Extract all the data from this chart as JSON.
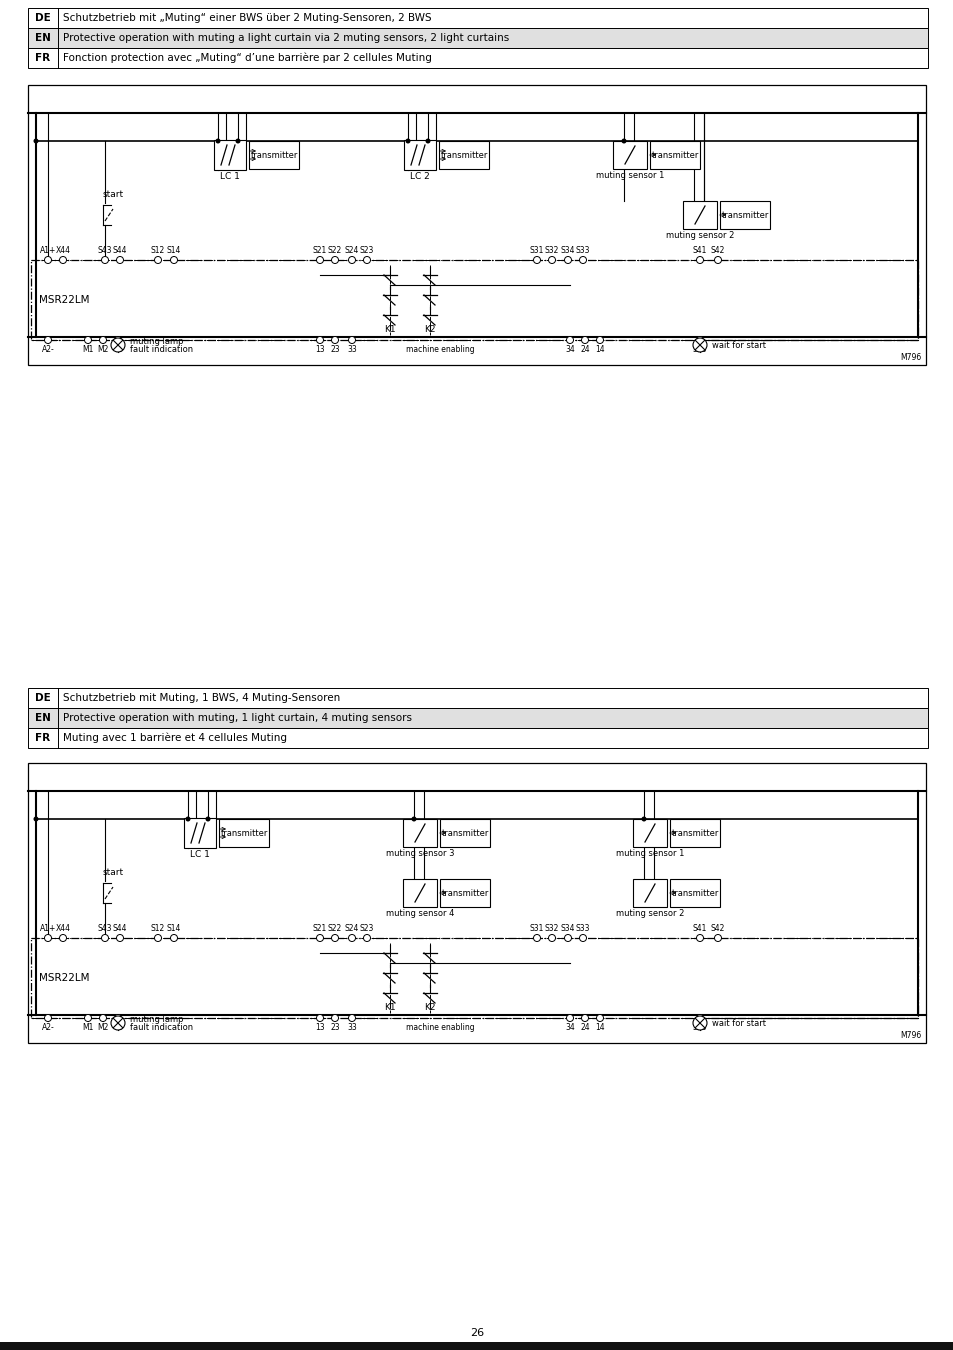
{
  "page_num": "26",
  "bg_color": "#ffffff",
  "table1": {
    "rows": [
      {
        "lang": "DE",
        "text": "Schutzbetrieb mit „Muting“ einer BWS über 2 Muting-Sensoren, 2 BWS",
        "bg": "#ffffff"
      },
      {
        "lang": "EN",
        "text": "Protective operation with muting a light curtain via 2 muting sensors, 2 light curtains",
        "bg": "#e0e0e0"
      },
      {
        "lang": "FR",
        "text": "Fonction protection avec „Muting“ d’une barrière par 2 cellules Muting",
        "bg": "#ffffff"
      }
    ]
  },
  "table2": {
    "rows": [
      {
        "lang": "DE",
        "text": "Schutzbetrieb mit Muting, 1 BWS, 4 Muting-Sensoren",
        "bg": "#ffffff"
      },
      {
        "lang": "EN",
        "text": "Protective operation with muting, 1 light curtain, 4 muting sensors",
        "bg": "#e0e0e0"
      },
      {
        "lang": "FR",
        "text": "Muting avec 1 barrière et 4 cellules Muting",
        "bg": "#ffffff"
      }
    ]
  },
  "border_color": "#000000",
  "line_color": "#000000",
  "text_color": "#000000"
}
